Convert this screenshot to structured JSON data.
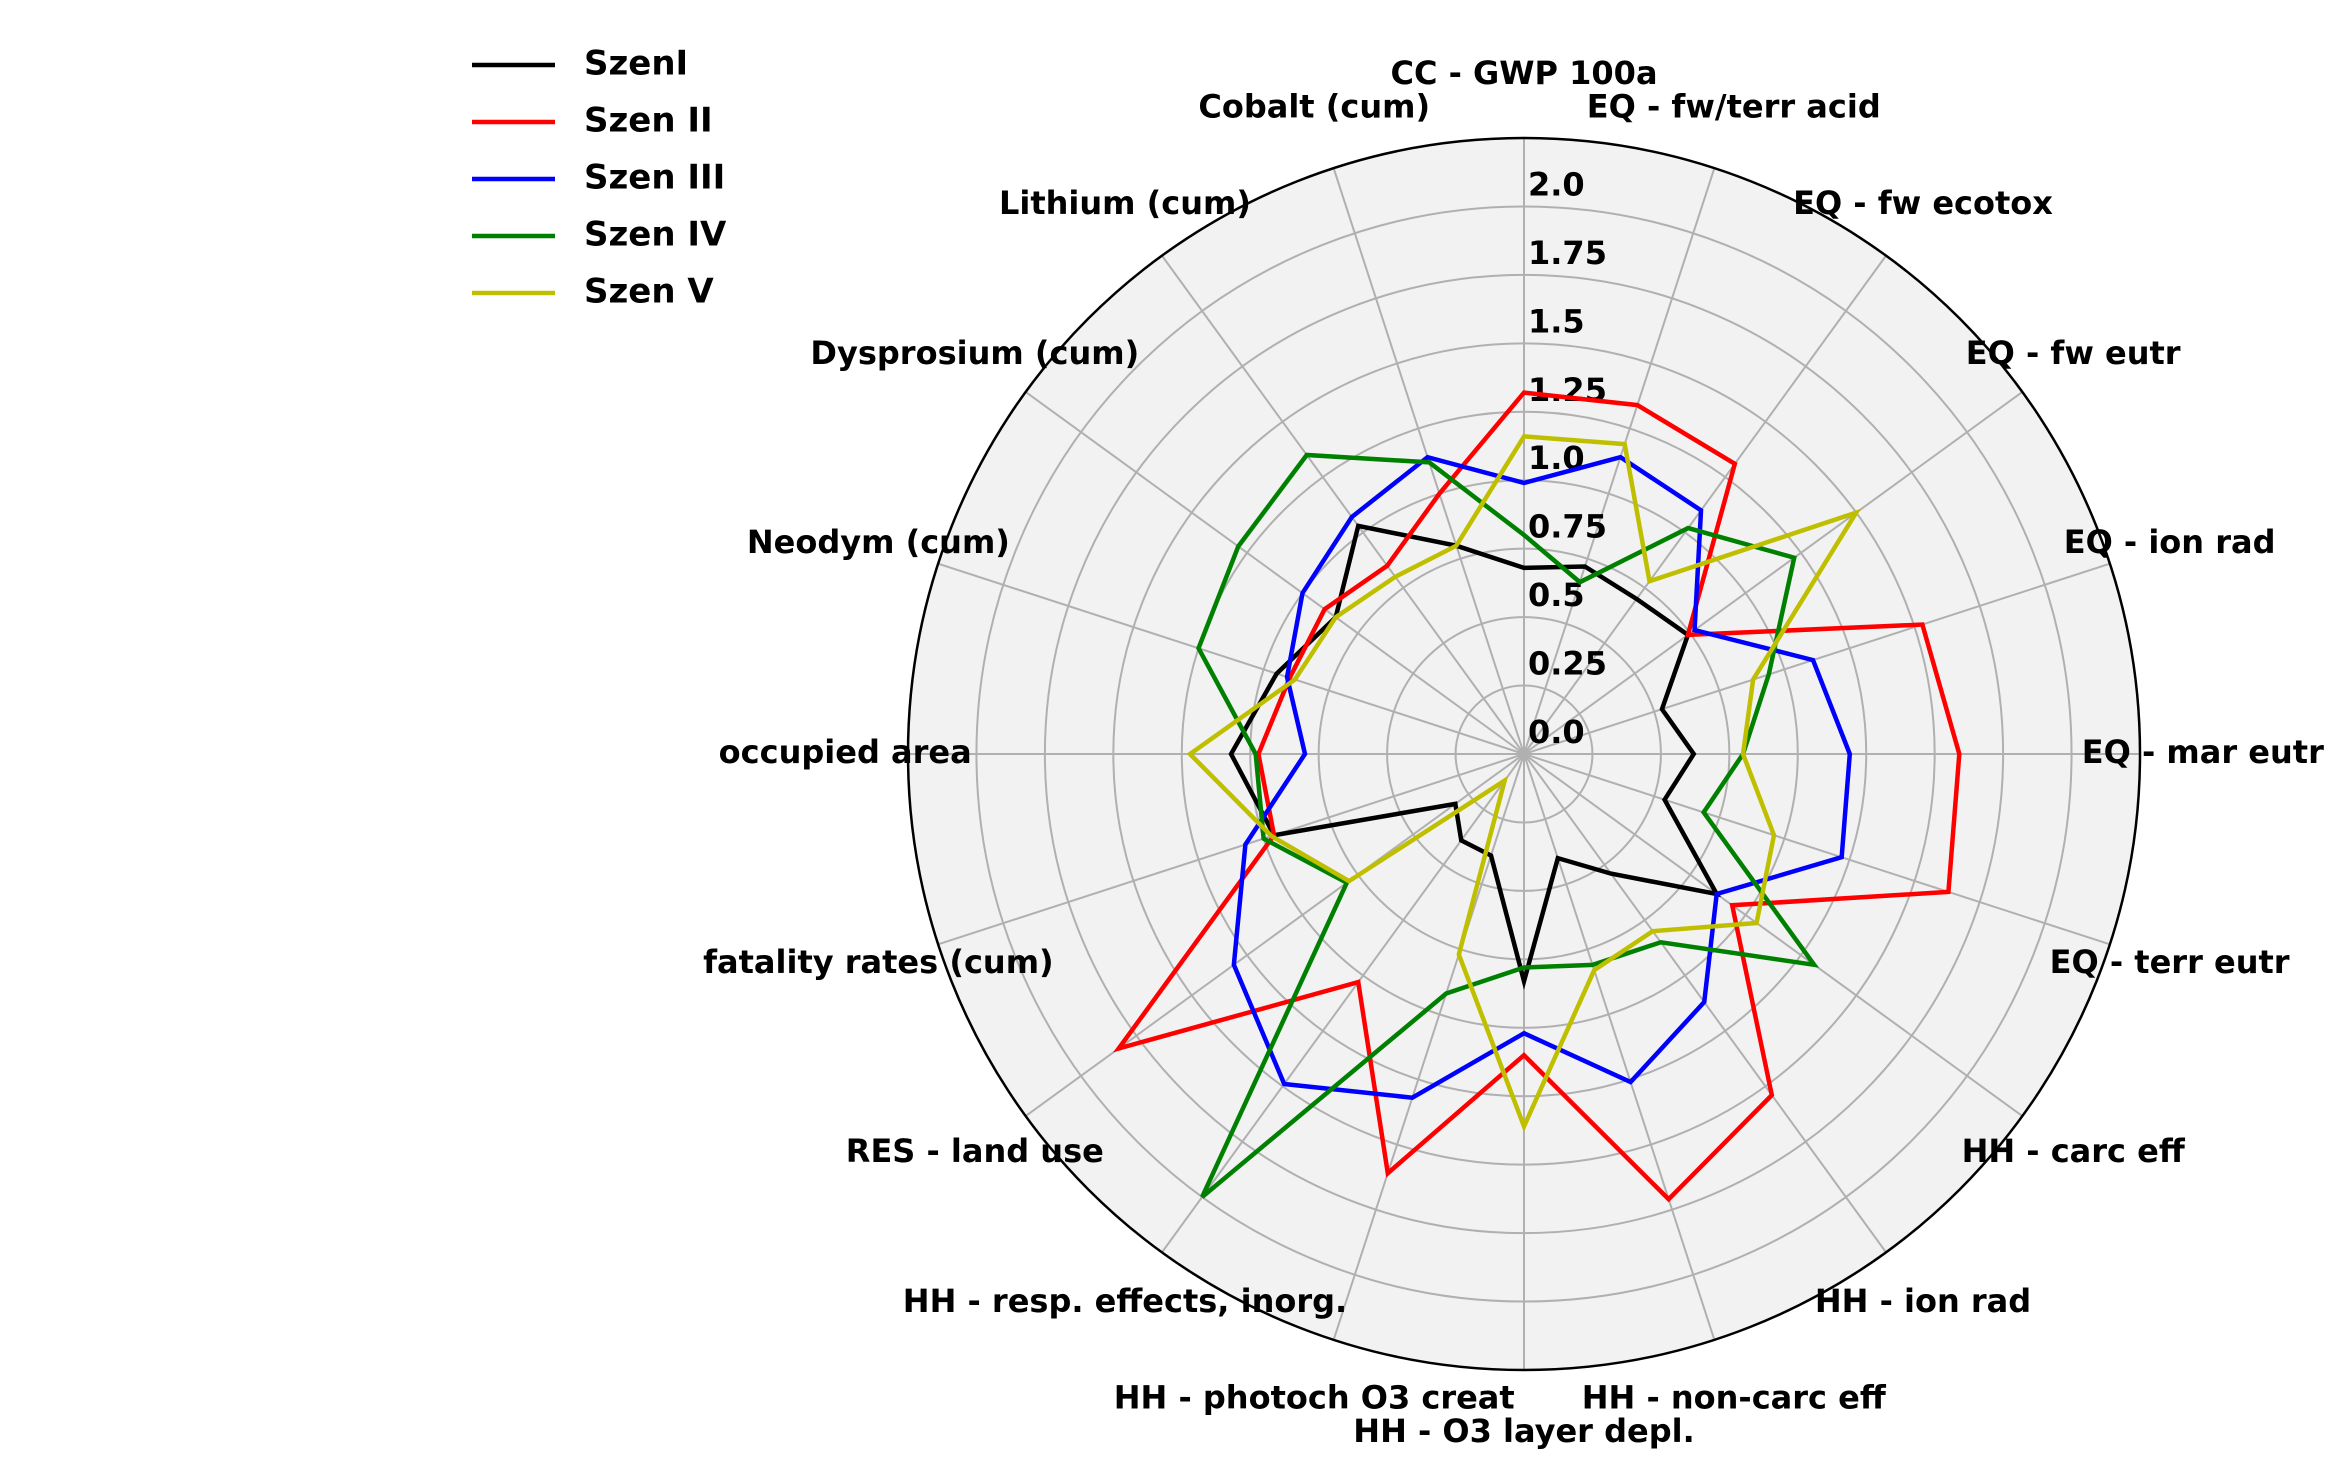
{
  "chart_data": {
    "type": "radar",
    "categories": [
      "CC - GWP 100a",
      "EQ - fw/terr acid",
      "EQ - fw ecotox",
      "EQ - fw eutr",
      "EQ - ion rad",
      "EQ - mar eutr",
      "EQ - terr eutr",
      "HH - carc eff",
      "HH - ion rad",
      "HH - non-carc eff",
      "HH - O3 layer depl.",
      "HH - photoch O3 creat",
      "HH - resp. effects, inorg.",
      "RES - land use",
      "fatality rates (cum)",
      "occupied area",
      "Neodym (cum)",
      "Dysprosium (cum)",
      "Lithium (cum)",
      "Cobalt (cum)"
    ],
    "series": [
      {
        "name": "SzenI",
        "color": "#000000",
        "values": [
          0.68,
          0.72,
          0.7,
          0.74,
          0.53,
          0.62,
          0.54,
          0.87,
          0.54,
          0.4,
          0.83,
          0.39,
          0.39,
          0.31,
          0.96,
          1.07,
          0.95,
          0.85,
          1.03,
          0.8
        ]
      },
      {
        "name": "Szen II",
        "color": "#ff0000",
        "values": [
          1.32,
          1.34,
          1.31,
          0.74,
          1.53,
          1.59,
          1.63,
          0.94,
          1.54,
          1.71,
          1.1,
          1.61,
          1.03,
          1.83,
          0.96,
          0.97,
          0.9,
          0.9,
          0.85,
          1.0
        ]
      },
      {
        "name": "Szen III",
        "color": "#0000ff",
        "values": [
          0.99,
          1.14,
          1.1,
          0.77,
          1.11,
          1.19,
          1.22,
          0.87,
          1.12,
          1.26,
          1.02,
          1.32,
          1.49,
          1.31,
          1.07,
          0.8,
          0.91,
          1.0,
          1.07,
          1.14
        ]
      },
      {
        "name": "Szen IV",
        "color": "#008000",
        "values": [
          0.8,
          0.66,
          1.02,
          1.22,
          0.94,
          0.8,
          0.69,
          1.31,
          0.85,
          0.81,
          0.78,
          0.92,
          2.0,
          0.8,
          1.0,
          0.98,
          1.25,
          1.29,
          1.35,
          1.12
        ]
      },
      {
        "name": "Szen V",
        "color": "#bfbf00",
        "values": [
          1.16,
          1.19,
          0.78,
          1.5,
          0.88,
          0.8,
          0.96,
          1.05,
          0.8,
          0.83,
          1.36,
          0.77,
          0.12,
          0.79,
          0.97,
          1.22,
          0.88,
          0.85,
          0.8,
          0.8
        ]
      }
    ],
    "ylim": [
      0,
      2.25
    ],
    "yticks": [
      {
        "value": 0,
        "label": "0.0"
      },
      0.25,
      0.5,
      0.75,
      {
        "value": 1,
        "label": "1.0"
      },
      1.25,
      1.5,
      1.75,
      {
        "value": 2,
        "label": "2.0"
      }
    ],
    "grid": true,
    "legend": "upper-left"
  }
}
